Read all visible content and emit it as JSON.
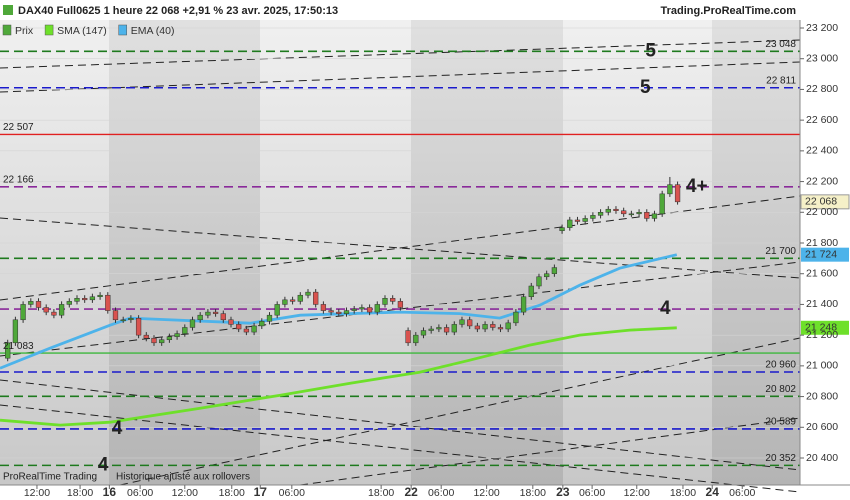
{
  "chart_data": {
    "type": "candlestick",
    "title": "DAX40 Full0625 1 heure 22 068 +2,91 % 23 avr. 2025, 17:50:13",
    "source": "Trading.ProRealTime.com",
    "footer": [
      "ProRealTime Trading",
      "Historique ajusté aux rollovers"
    ],
    "price_name": "Prix",
    "up_color": "#4fa83a",
    "down_color": "#d9534f",
    "last_price": {
      "value": 22068,
      "label": "22 068"
    },
    "ylim": [
      20320,
      23240
    ],
    "yticks": [
      {
        "value": 20400,
        "label": "20 400"
      },
      {
        "value": 20600,
        "label": "20 600"
      },
      {
        "value": 20800,
        "label": "20 800"
      },
      {
        "value": 21000,
        "label": "21 000"
      },
      {
        "value": 21200,
        "label": "21 200"
      },
      {
        "value": 21400,
        "label": "21 400"
      },
      {
        "value": 21600,
        "label": "21 600"
      },
      {
        "value": 21800,
        "label": "21 800"
      },
      {
        "value": 22000,
        "label": "22 000"
      },
      {
        "value": 22200,
        "label": "22 200"
      },
      {
        "value": 22400,
        "label": "22 400"
      },
      {
        "value": 22600,
        "label": "22 600"
      },
      {
        "value": 22800,
        "label": "22 800"
      },
      {
        "value": 23000,
        "label": "23 000"
      },
      {
        "value": 23200,
        "label": "23 200"
      }
    ],
    "xlim": [
      0,
      103.9
    ],
    "xticks": [
      {
        "value": 4.8,
        "label": "12:00"
      },
      {
        "value": 10.4,
        "label": "18:00"
      },
      {
        "value": 14.2,
        "label": "16"
      },
      {
        "value": 18.2,
        "label": "06:00"
      },
      {
        "value": 24,
        "label": "12:00"
      },
      {
        "value": 30.1,
        "label": "18:00"
      },
      {
        "value": 33.8,
        "label": "17"
      },
      {
        "value": 37.9,
        "label": "06:00"
      },
      {
        "value": 49.5,
        "label": "18:00"
      },
      {
        "value": 53.4,
        "label": "22"
      },
      {
        "value": 57.3,
        "label": "06:00"
      },
      {
        "value": 63.2,
        "label": "12:00"
      },
      {
        "value": 69.2,
        "label": "18:00"
      },
      {
        "value": 73.1,
        "label": "23"
      },
      {
        "value": 76.9,
        "label": "06:00"
      },
      {
        "value": 82.7,
        "label": "12:00"
      },
      {
        "value": 88.7,
        "label": "18:00"
      },
      {
        "value": 92.5,
        "label": "24"
      },
      {
        "value": 96.4,
        "label": "06:00"
      }
    ],
    "candles": [
      [
        21050,
        21170,
        21030,
        21150
      ],
      [
        21150,
        21320,
        21130,
        21300
      ],
      [
        21300,
        21420,
        21280,
        21400
      ],
      [
        21400,
        21440,
        21380,
        21420
      ],
      [
        21420,
        21440,
        21360,
        21380
      ],
      [
        21380,
        21400,
        21330,
        21350
      ],
      [
        21350,
        21370,
        21310,
        21330
      ],
      [
        21330,
        21420,
        21310,
        21400
      ],
      [
        21400,
        21440,
        21380,
        21420
      ],
      [
        21420,
        21460,
        21400,
        21440
      ],
      [
        21440,
        21460,
        21410,
        21430
      ],
      [
        21430,
        21470,
        21410,
        21450
      ],
      [
        21450,
        21480,
        21430,
        21460
      ],
      [
        21460,
        21480,
        21340,
        21360
      ],
      [
        21360,
        21380,
        21280,
        21300
      ],
      [
        21300,
        21320,
        21280,
        21300
      ],
      [
        21300,
        21330,
        21280,
        21310
      ],
      [
        21310,
        21330,
        21180,
        21200
      ],
      [
        21200,
        21220,
        21160,
        21180
      ],
      [
        21180,
        21200,
        21130,
        21150
      ],
      [
        21150,
        21190,
        21130,
        21170
      ],
      [
        21170,
        21210,
        21150,
        21190
      ],
      [
        21190,
        21230,
        21170,
        21210
      ],
      [
        21210,
        21270,
        21190,
        21250
      ],
      [
        21250,
        21320,
        21230,
        21300
      ],
      [
        21300,
        21350,
        21280,
        21330
      ],
      [
        21330,
        21370,
        21310,
        21350
      ],
      [
        21350,
        21370,
        21320,
        21340
      ],
      [
        21340,
        21360,
        21280,
        21300
      ],
      [
        21300,
        21320,
        21250,
        21270
      ],
      [
        21270,
        21290,
        21220,
        21240
      ],
      [
        21240,
        21260,
        21200,
        21220
      ],
      [
        21220,
        21280,
        21200,
        21260
      ],
      [
        21260,
        21310,
        21240,
        21290
      ],
      [
        21290,
        21350,
        21270,
        21330
      ],
      [
        21330,
        21420,
        21310,
        21400
      ],
      [
        21400,
        21450,
        21380,
        21430
      ],
      [
        21430,
        21450,
        21400,
        21420
      ],
      [
        21420,
        21480,
        21400,
        21460
      ],
      [
        21460,
        21500,
        21440,
        21480
      ],
      [
        21480,
        21500,
        21380,
        21400
      ],
      [
        21400,
        21420,
        21340,
        21360
      ],
      [
        21360,
        21380,
        21330,
        21350
      ],
      [
        21350,
        21370,
        21320,
        21340
      ],
      [
        21340,
        21380,
        21320,
        21360
      ],
      [
        21360,
        21390,
        21340,
        21370
      ],
      [
        21370,
        21400,
        21350,
        21380
      ],
      [
        21380,
        21400,
        21330,
        21350
      ],
      [
        21350,
        21420,
        21330,
        21400
      ],
      [
        21400,
        21460,
        21380,
        21440
      ],
      [
        21440,
        21460,
        21400,
        21420
      ],
      [
        21420,
        21440,
        21360,
        21380
      ],
      [
        21230,
        21250,
        21130,
        21150
      ],
      [
        21150,
        21220,
        21130,
        21200
      ],
      [
        21200,
        21250,
        21180,
        21230
      ],
      [
        21230,
        21260,
        21210,
        21240
      ],
      [
        21240,
        21270,
        21220,
        21250
      ],
      [
        21250,
        21270,
        21200,
        21220
      ],
      [
        21220,
        21290,
        21200,
        21270
      ],
      [
        21270,
        21320,
        21250,
        21300
      ],
      [
        21300,
        21320,
        21240,
        21260
      ],
      [
        21260,
        21280,
        21220,
        21240
      ],
      [
        21240,
        21290,
        21220,
        21270
      ],
      [
        21270,
        21290,
        21230,
        21250
      ],
      [
        21250,
        21270,
        21220,
        21240
      ],
      [
        21240,
        21300,
        21220,
        21280
      ],
      [
        21280,
        21370,
        21260,
        21350
      ],
      [
        21350,
        21470,
        21330,
        21450
      ],
      [
        21450,
        21540,
        21430,
        21520
      ],
      [
        21520,
        21600,
        21500,
        21580
      ],
      [
        21580,
        21620,
        21560,
        21600
      ],
      [
        21600,
        21660,
        21580,
        21640
      ],
      [
        21880,
        21920,
        21860,
        21900
      ],
      [
        21900,
        21970,
        21880,
        21950
      ],
      [
        21950,
        21970,
        21920,
        21940
      ],
      [
        21940,
        21980,
        21920,
        21960
      ],
      [
        21960,
        22000,
        21940,
        21980
      ],
      [
        21980,
        22020,
        21960,
        22000
      ],
      [
        22000,
        22040,
        21980,
        22020
      ],
      [
        22020,
        22040,
        21990,
        22010
      ],
      [
        22010,
        22030,
        21970,
        21990
      ],
      [
        21990,
        22010,
        21970,
        21990
      ],
      [
        21990,
        22020,
        21970,
        22000
      ],
      [
        22000,
        22020,
        21940,
        21960
      ],
      [
        21960,
        22010,
        21940,
        21990
      ],
      [
        21990,
        22140,
        21970,
        22120
      ],
      [
        22120,
        22230,
        22100,
        22180
      ],
      [
        22180,
        22200,
        22050,
        22068
      ]
    ],
    "series": [
      {
        "name": "SMA (147)",
        "color": "#6ee02a",
        "x": [
          0,
          7.8,
          14.3,
          26,
          36.4,
          45.5,
          54.5,
          61,
          68.8,
          75.3,
          81.8,
          87.9
        ],
        "values": [
          20646,
          20614,
          20633,
          20724,
          20809,
          20887,
          20959,
          21037,
          21135,
          21200,
          21233,
          21248
        ],
        "last_label": "21 248"
      },
      {
        "name": "EMA (40)",
        "color": "#4db3ea",
        "x": [
          0,
          6.5,
          14.3,
          16.9,
          32.5,
          39,
          51.9,
          59.7,
          64.9,
          70.1,
          75.3,
          80.5,
          87.9
        ],
        "values": [
          20985,
          21115,
          21265,
          21311,
          21278,
          21330,
          21350,
          21340,
          21311,
          21395,
          21525,
          21636,
          21724
        ],
        "last_label": "21 724"
      }
    ],
    "levels": [
      {
        "value": 23048,
        "label": "23 048",
        "color": "#1e7a1e",
        "dash": true,
        "side": "right"
      },
      {
        "value": 22811,
        "label": "22 811",
        "color": "#1a1acc",
        "dash": true,
        "side": "right"
      },
      {
        "value": 22507,
        "label": "22 507",
        "color": "#e02020",
        "dash": false,
        "side": "left"
      },
      {
        "value": 22166,
        "label": "22 166",
        "color": "#8a2a9a",
        "dash": true,
        "side": "left"
      },
      {
        "value": 21700,
        "label": "21 700",
        "color": "#1e7a1e",
        "dash": true,
        "side": "right"
      },
      {
        "value": 21370,
        "color": "#8a2a9a",
        "dash": true
      },
      {
        "value": 21083,
        "label": "21 083",
        "color": "#3cb83c",
        "dash": false,
        "side": "left"
      },
      {
        "value": 20960,
        "label": "20 960",
        "color": "#1a1acc",
        "dash": true,
        "side": "right"
      },
      {
        "value": 20802,
        "label": "20 802",
        "color": "#1e7a1e",
        "dash": true,
        "side": "right"
      },
      {
        "value": 20589,
        "label": "20 589",
        "color": "#1a1acc",
        "dash": true,
        "side": "right"
      },
      {
        "value": 20352,
        "label": "20 352",
        "color": "#1e7a1e",
        "dash": true,
        "side": "right"
      }
    ],
    "annotations": [
      {
        "text": "5",
        "level": 0,
        "x": 84.5
      },
      {
        "text": "5",
        "level": 1,
        "x": 83.8
      },
      {
        "text": "4+",
        "level": 3,
        "x": 90.5
      },
      {
        "text": "4",
        "level": 5,
        "x": 86.4
      },
      {
        "text": "4",
        "level": 9,
        "x": 15.2
      },
      {
        "text": "4",
        "level": 10,
        "x": 13.4
      }
    ]
  }
}
